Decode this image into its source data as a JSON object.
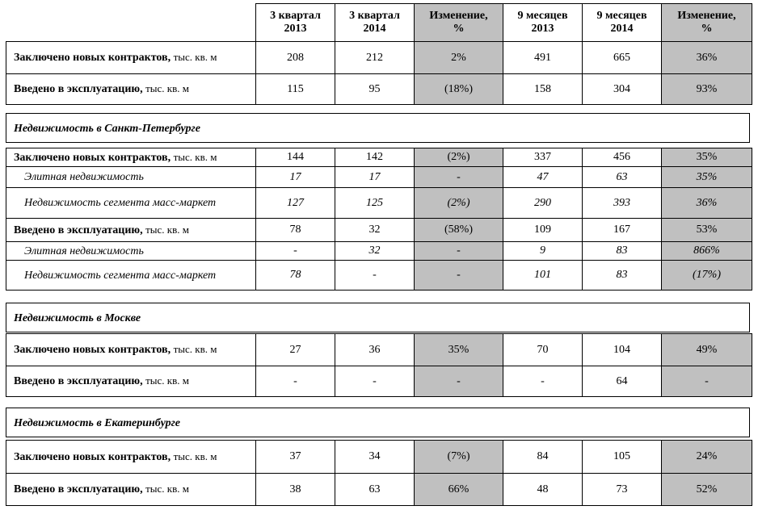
{
  "headers": [
    "3 квартал\n2013",
    "3 квартал\n2014",
    "Изменение,\n%",
    "9 месяцев\n2013",
    "9 месяцев\n2014",
    "Изменение,\n%"
  ],
  "header_lines": [
    [
      "3 квартал",
      "2013"
    ],
    [
      "3 квартал",
      "2014"
    ],
    [
      "Изменение,",
      "%"
    ],
    [
      "9 месяцев",
      "2013"
    ],
    [
      "9 месяцев",
      "2014"
    ],
    [
      "Изменение,",
      "%"
    ]
  ],
  "unit": "тыс. кв. м",
  "summary": [
    {
      "label": "Заключено новых контрактов,",
      "values": [
        "208",
        "212",
        "2%",
        "491",
        "665",
        "36%"
      ]
    },
    {
      "label": "Введено в эксплуатацию,",
      "values": [
        "115",
        "95",
        "(18%)",
        "158",
        "304",
        "93%"
      ]
    }
  ],
  "sections": [
    {
      "title": "Недвижимость в Санкт-Петербурге",
      "rows": [
        {
          "label": "Заключено новых контрактов,",
          "values": [
            "144",
            "142",
            "(2%)",
            "337",
            "456",
            "35%"
          ]
        },
        {
          "label": "Элитная недвижимость",
          "sub": true,
          "values": [
            "17",
            "17",
            "-",
            "47",
            "63",
            "35%"
          ]
        },
        {
          "label": "Недвижимость сегмента масс-маркет",
          "sub": true,
          "values": [
            "127",
            "125",
            "(2%)",
            "290",
            "393",
            "36%"
          ]
        },
        {
          "label": "Введено в эксплуатацию,",
          "values": [
            "78",
            "32",
            "(58%)",
            "109",
            "167",
            "53%"
          ]
        },
        {
          "label": "Элитная недвижимость",
          "sub": true,
          "values": [
            "-",
            "32",
            "-",
            "9",
            "83",
            "866%"
          ]
        },
        {
          "label": "Недвижимость сегмента масс-маркет",
          "sub": true,
          "values": [
            "78",
            "-",
            "-",
            "101",
            "83",
            "(17%)"
          ]
        }
      ]
    },
    {
      "title": "Недвижимость в Москве",
      "rows": [
        {
          "label": "Заключено новых контрактов,",
          "values": [
            "27",
            "36",
            "35%",
            "70",
            "104",
            "49%"
          ]
        },
        {
          "label": "Введено в эксплуатацию,",
          "values": [
            "-",
            "-",
            "-",
            "-",
            "64",
            "-"
          ]
        }
      ]
    },
    {
      "title": "Недвижимость в Екатеринбурге",
      "rows": [
        {
          "label": "Заключено новых контрактов,",
          "values": [
            "37",
            "34",
            "(7%)",
            "84",
            "105",
            "24%"
          ]
        },
        {
          "label": "Введено в эксплуатацию,",
          "values": [
            "38",
            "63",
            "66%",
            "48",
            "73",
            "52%"
          ]
        }
      ]
    }
  ]
}
